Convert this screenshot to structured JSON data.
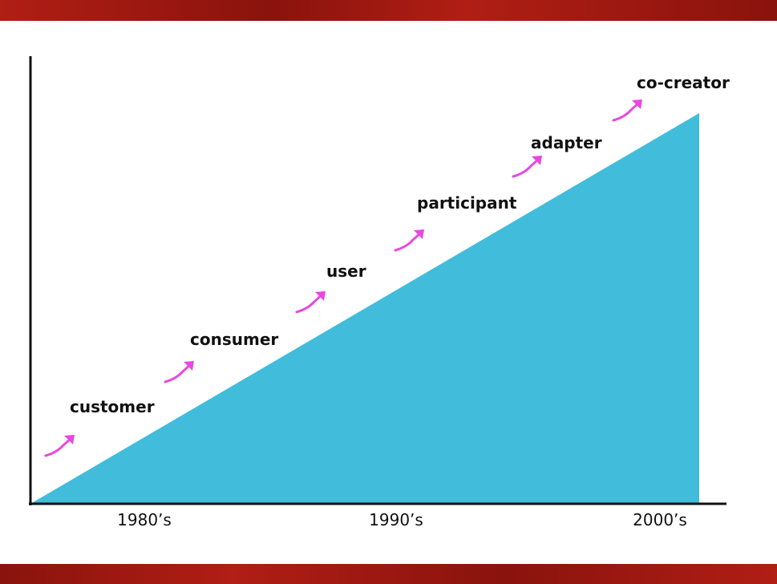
{
  "stages": [
    {
      "label": "customer"
    },
    {
      "label": "consumer"
    },
    {
      "label": "user"
    },
    {
      "label": "participant"
    },
    {
      "label": "adapter"
    },
    {
      "label": "co-creator"
    }
  ],
  "x_axis": {
    "ticks": [
      "1980’s",
      "1990’s",
      "2000’s"
    ]
  },
  "colors": {
    "band": "#b01e14",
    "band_dark": "#8a130d",
    "area": "#41bddb",
    "arrow": "#e649e0",
    "axis": "#111111"
  },
  "icons": {
    "arrow": "curved-arrow-icon"
  }
}
